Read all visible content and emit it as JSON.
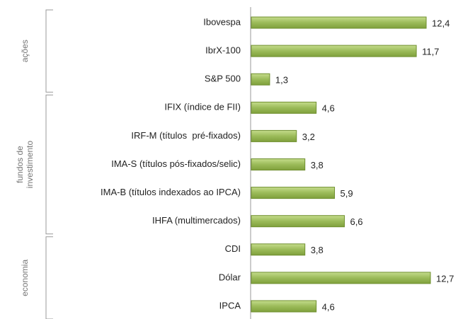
{
  "chart_data": {
    "type": "bar",
    "orientation": "horizontal",
    "color": "#9bbb59",
    "groups": [
      {
        "name": "ações",
        "categories": [
          "Ibovespa",
          "IbrX-100",
          "S&P 500"
        ],
        "values": [
          12.4,
          11.7,
          1.3
        ],
        "value_labels": [
          "12,4",
          "11,7",
          "1,3"
        ]
      },
      {
        "name": "fundos de investimento",
        "categories": [
          "IFIX (índice de FII)",
          "IRF-M (títulos  pré-fixados)",
          "IMA-S (títulos pós-fixados/selic)",
          "IMA-B (títulos indexados ao IPCA)",
          "IHFA (multimercados)"
        ],
        "values": [
          4.6,
          3.2,
          3.8,
          5.9,
          6.6
        ],
        "value_labels": [
          "4,6",
          "3,2",
          "3,8",
          "5,9",
          "6,6"
        ]
      },
      {
        "name": "economia",
        "categories": [
          "CDI",
          "Dólar",
          "IPCA"
        ],
        "values": [
          3.8,
          12.7,
          4.6
        ],
        "value_labels": [
          "3,8",
          "12,7",
          "4,6"
        ]
      }
    ]
  }
}
